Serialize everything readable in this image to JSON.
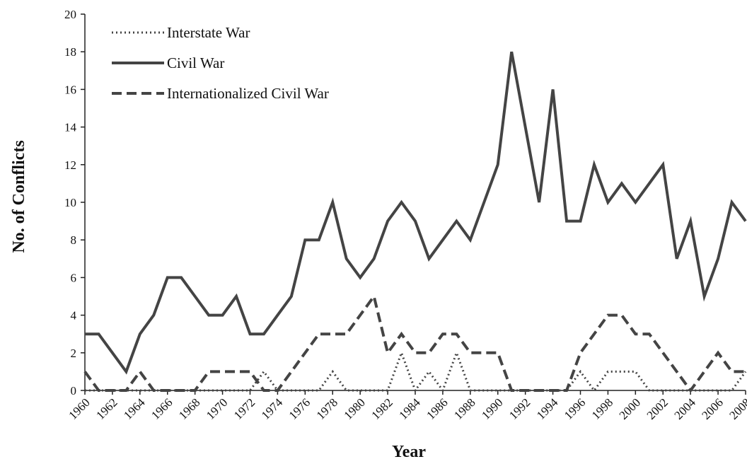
{
  "chart_data": {
    "type": "line",
    "xlabel": "Year",
    "ylabel": "No. of Conflicts",
    "x": [
      1960,
      1961,
      1962,
      1963,
      1964,
      1965,
      1966,
      1967,
      1968,
      1969,
      1970,
      1971,
      1972,
      1973,
      1974,
      1975,
      1976,
      1977,
      1978,
      1979,
      1980,
      1981,
      1982,
      1983,
      1984,
      1985,
      1986,
      1987,
      1988,
      1989,
      1990,
      1991,
      1992,
      1993,
      1994,
      1995,
      1996,
      1997,
      1998,
      1999,
      2000,
      2001,
      2002,
      2003,
      2004,
      2005,
      2006,
      2007,
      2008
    ],
    "series": [
      {
        "name": "Interstate War",
        "color": "#444444",
        "style": "dotted",
        "values": [
          0,
          0,
          0,
          0,
          0,
          0,
          0,
          0,
          0,
          0,
          0,
          0,
          0,
          1,
          0,
          0,
          0,
          0,
          1,
          0,
          0,
          0,
          0,
          2,
          0,
          1,
          0,
          2,
          0,
          0,
          0,
          0,
          0,
          0,
          0,
          0,
          1,
          0,
          1,
          1,
          1,
          0,
          0,
          0,
          0,
          0,
          0,
          0,
          1
        ]
      },
      {
        "name": "Civil War",
        "color": "#444444",
        "style": "solid",
        "values": [
          3,
          3,
          2,
          1,
          3,
          4,
          6,
          6,
          5,
          4,
          4,
          5,
          3,
          3,
          4,
          5,
          8,
          8,
          10,
          7,
          6,
          7,
          9,
          10,
          9,
          7,
          8,
          9,
          8,
          10,
          12,
          18,
          14,
          10,
          16,
          9,
          9,
          12,
          10,
          11,
          10,
          11,
          12,
          7,
          9,
          5,
          7,
          10,
          9
        ]
      },
      {
        "name": "Internationalized Civil War",
        "color": "#444444",
        "style": "dashed",
        "values": [
          1,
          0,
          0,
          0,
          1,
          0,
          0,
          0,
          0,
          1,
          1,
          1,
          1,
          0,
          0,
          1,
          2,
          3,
          3,
          3,
          4,
          5,
          2,
          3,
          2,
          2,
          3,
          3,
          2,
          2,
          2,
          0,
          0,
          0,
          0,
          0,
          2,
          3,
          4,
          4,
          3,
          3,
          2,
          1,
          0,
          1,
          2,
          1,
          1
        ]
      }
    ],
    "xlim": [
      1960,
      2008
    ],
    "xticks": [
      1960,
      1962,
      1964,
      1966,
      1968,
      1970,
      1972,
      1974,
      1976,
      1978,
      1980,
      1982,
      1984,
      1986,
      1988,
      1990,
      1992,
      1994,
      1996,
      1998,
      2000,
      2002,
      2004,
      2006,
      2008
    ],
    "ylim": [
      0,
      20
    ],
    "yticks": [
      0,
      2,
      4,
      6,
      8,
      10,
      12,
      14,
      16,
      18,
      20
    ],
    "grid": false,
    "legend": "upper left"
  }
}
